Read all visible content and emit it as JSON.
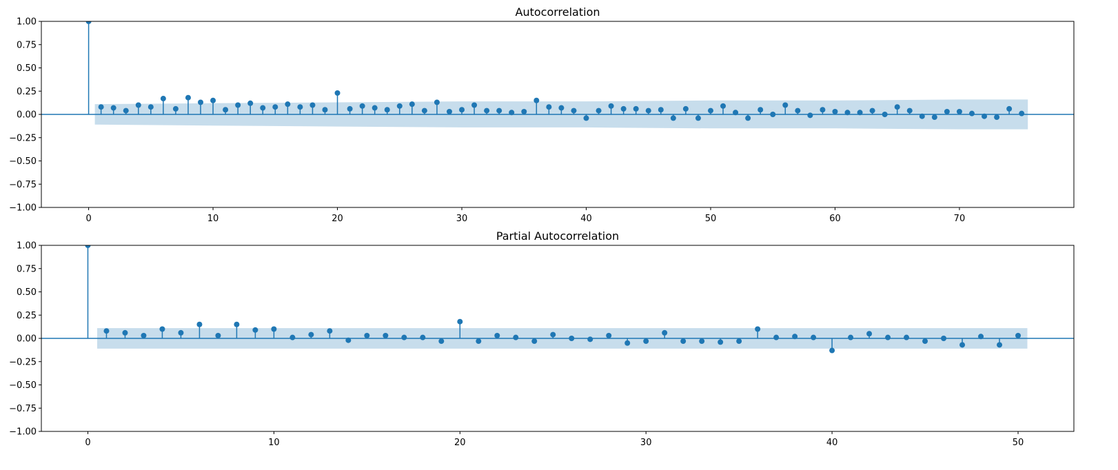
{
  "colors": {
    "series": "#1f77b4",
    "confidence_band": "#1f77b4"
  },
  "chart_data": [
    {
      "type": "stem",
      "title": "Autocorrelation",
      "xlabel": "",
      "ylabel": "",
      "xlim": [
        -3.8,
        79.2
      ],
      "ylim": [
        -1.0,
        1.0
      ],
      "x_ticks": [
        "0",
        "10",
        "20",
        "30",
        "40",
        "50",
        "60",
        "70"
      ],
      "y_ticks": [
        "1.00",
        "0.75",
        "0.50",
        "0.25",
        "0.00",
        "−0.25",
        "−0.50",
        "−0.75",
        "−1.00"
      ],
      "grid": false,
      "legend": "none",
      "lags": [
        0,
        1,
        2,
        3,
        4,
        5,
        6,
        7,
        8,
        9,
        10,
        11,
        12,
        13,
        14,
        15,
        16,
        17,
        18,
        19,
        20,
        21,
        22,
        23,
        24,
        25,
        26,
        27,
        28,
        29,
        30,
        31,
        32,
        33,
        34,
        35,
        36,
        37,
        38,
        39,
        40,
        41,
        42,
        43,
        44,
        45,
        46,
        47,
        48,
        49,
        50,
        51,
        52,
        53,
        54,
        55,
        56,
        57,
        58,
        59,
        60,
        61,
        62,
        63,
        64,
        65,
        66,
        67,
        68,
        69,
        70,
        71,
        72,
        73,
        74,
        75
      ],
      "values": [
        1.0,
        0.08,
        0.07,
        0.04,
        0.1,
        0.08,
        0.17,
        0.06,
        0.18,
        0.13,
        0.15,
        0.05,
        0.1,
        0.12,
        0.07,
        0.08,
        0.11,
        0.08,
        0.1,
        0.05,
        0.23,
        0.06,
        0.09,
        0.07,
        0.05,
        0.09,
        0.11,
        0.04,
        0.13,
        0.03,
        0.05,
        0.1,
        0.04,
        0.04,
        0.02,
        0.03,
        0.15,
        0.08,
        0.07,
        0.04,
        -0.04,
        0.04,
        0.09,
        0.06,
        0.06,
        0.04,
        0.05,
        -0.04,
        0.06,
        -0.04,
        0.04,
        0.09,
        0.02,
        -0.04,
        0.05,
        0.0,
        0.1,
        0.04,
        -0.01,
        0.05,
        0.03,
        0.02,
        0.02,
        0.04,
        0.0,
        0.08,
        0.04,
        -0.02,
        -0.03,
        0.03,
        0.03,
        0.01,
        -0.02,
        -0.03,
        0.06,
        0.01
      ],
      "confidence_band": {
        "lags": [
          0.5,
          10,
          20,
          30,
          40,
          50,
          60,
          70,
          75.5
        ],
        "upper": [
          0.11,
          0.12,
          0.13,
          0.14,
          0.14,
          0.15,
          0.15,
          0.16,
          0.16
        ],
        "lower": [
          -0.11,
          -0.12,
          -0.13,
          -0.14,
          -0.14,
          -0.15,
          -0.15,
          -0.16,
          -0.16
        ]
      }
    },
    {
      "type": "stem",
      "title": "Partial Autocorrelation",
      "xlabel": "",
      "ylabel": "",
      "xlim": [
        -2.5,
        53.0
      ],
      "ylim": [
        -1.0,
        1.0
      ],
      "x_ticks": [
        "0",
        "10",
        "20",
        "30",
        "40",
        "50"
      ],
      "y_ticks": [
        "1.00",
        "0.75",
        "0.50",
        "0.25",
        "0.00",
        "−0.25",
        "−0.50",
        "−0.75",
        "−1.00"
      ],
      "grid": false,
      "legend": "none",
      "lags": [
        0,
        1,
        2,
        3,
        4,
        5,
        6,
        7,
        8,
        9,
        10,
        11,
        12,
        13,
        14,
        15,
        16,
        17,
        18,
        19,
        20,
        21,
        22,
        23,
        24,
        25,
        26,
        27,
        28,
        29,
        30,
        31,
        32,
        33,
        34,
        35,
        36,
        37,
        38,
        39,
        40,
        41,
        42,
        43,
        44,
        45,
        46,
        47,
        48,
        49,
        50
      ],
      "values": [
        1.0,
        0.08,
        0.06,
        0.03,
        0.1,
        0.06,
        0.15,
        0.03,
        0.15,
        0.09,
        0.1,
        0.01,
        0.04,
        0.08,
        -0.02,
        0.03,
        0.03,
        0.01,
        0.01,
        -0.03,
        0.18,
        -0.03,
        0.03,
        0.01,
        -0.03,
        0.04,
        0.0,
        -0.01,
        0.03,
        -0.05,
        -0.03,
        0.06,
        -0.03,
        -0.03,
        -0.04,
        -0.03,
        0.1,
        0.01,
        0.02,
        0.01,
        -0.13,
        0.01,
        0.05,
        0.01,
        0.01,
        -0.03,
        0.0,
        -0.07,
        0.02,
        -0.07,
        0.03
      ],
      "confidence_band": {
        "lags": [
          0.5,
          50.5
        ],
        "upper": [
          0.11,
          0.11
        ],
        "lower": [
          -0.11,
          -0.11
        ]
      }
    }
  ]
}
